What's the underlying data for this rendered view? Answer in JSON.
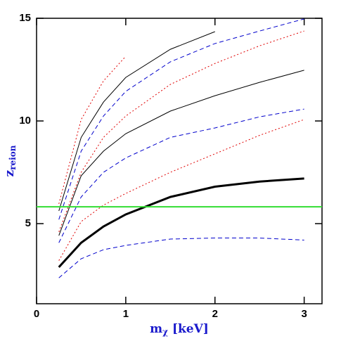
{
  "chart_data": {
    "type": "line",
    "x_label": "m",
    "x_label_sub": "χ",
    "x_label_unit": "[keV]",
    "y_label": "z",
    "y_label_sub": "reion",
    "x": [
      0.25,
      0.5,
      0.75,
      1,
      1.5,
      2,
      2.5,
      3
    ],
    "series": [
      {
        "color": "#e00000",
        "dash": "2,3",
        "width": 1,
        "values": [
          5.96,
          10.07,
          11.95,
          13.15,
          null,
          null,
          null,
          null
        ]
      },
      {
        "color": "#000000",
        "dash": "none",
        "width": 1,
        "values": [
          5.62,
          9.2,
          10.92,
          12.12,
          13.49,
          14.35,
          null,
          null
        ]
      },
      {
        "color": "#0000cc",
        "dash": "6,4",
        "width": 1,
        "values": [
          5.2,
          8.53,
          10.24,
          11.44,
          12.88,
          13.77,
          14.38,
          14.97
        ]
      },
      {
        "color": "#e00000",
        "dash": "2,3",
        "width": 1,
        "values": [
          4.6,
          7.5,
          9.2,
          10.24,
          11.78,
          12.8,
          13.66,
          14.38
        ]
      },
      {
        "color": "#000000",
        "dash": "none",
        "width": 1,
        "values": [
          4.42,
          7.33,
          8.53,
          9.38,
          10.48,
          11.23,
          11.88,
          12.47
        ]
      },
      {
        "color": "#0000cc",
        "dash": "6,4",
        "width": 1,
        "values": [
          4.07,
          6.3,
          7.5,
          8.2,
          9.2,
          9.66,
          10.2,
          10.58
        ]
      },
      {
        "color": "#e00000",
        "dash": "2,3",
        "width": 1,
        "values": [
          3.2,
          5.1,
          5.9,
          6.47,
          7.5,
          8.4,
          9.3,
          10.07
        ]
      },
      {
        "color": "#0000cc",
        "dash": "6,4",
        "width": 1,
        "values": [
          2.36,
          3.29,
          3.73,
          3.94,
          4.25,
          4.3,
          4.3,
          4.2
        ]
      },
      {
        "color": "#000000",
        "dash": "none",
        "width": 3,
        "values": [
          2.88,
          4.07,
          4.86,
          5.45,
          6.3,
          6.8,
          7.05,
          7.2
        ]
      }
    ],
    "hline": {
      "value": 5.82,
      "color": "#33dd33"
    },
    "xlim": [
      0,
      3.2
    ],
    "ylim": [
      1.1,
      15
    ],
    "xticks": [
      0,
      1,
      2,
      3
    ],
    "yticks": [
      5,
      10,
      15
    ]
  }
}
